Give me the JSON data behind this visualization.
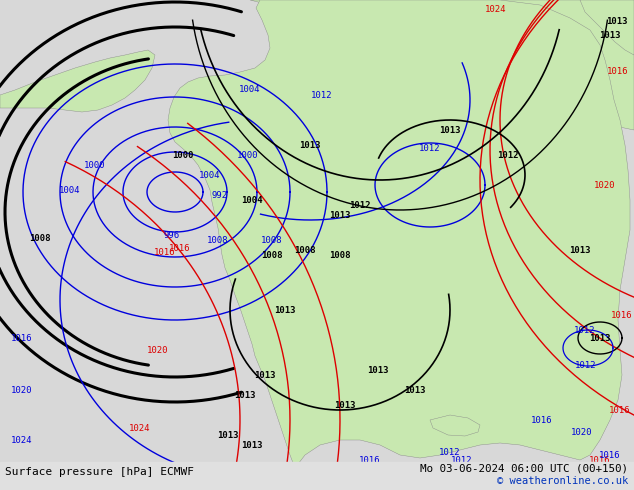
{
  "title_left": "Surface pressure [hPa] ECMWF",
  "title_right": "Mo 03-06-2024 06:00 UTC (00+150)",
  "copyright": "© weatheronline.co.uk",
  "bg_color": "#d8d8d8",
  "land_color": "#c8e8b0",
  "ocean_color": "#d8d8d8",
  "bottom_bar_color": "#e8e8e8",
  "text_color_black": "#000000",
  "text_color_blue": "#0000bb",
  "isobar_blue": "#0000dd",
  "isobar_black": "#000000",
  "isobar_red": "#dd0000",
  "isobar_lw_thin": 1.0,
  "isobar_lw_thick": 2.2
}
